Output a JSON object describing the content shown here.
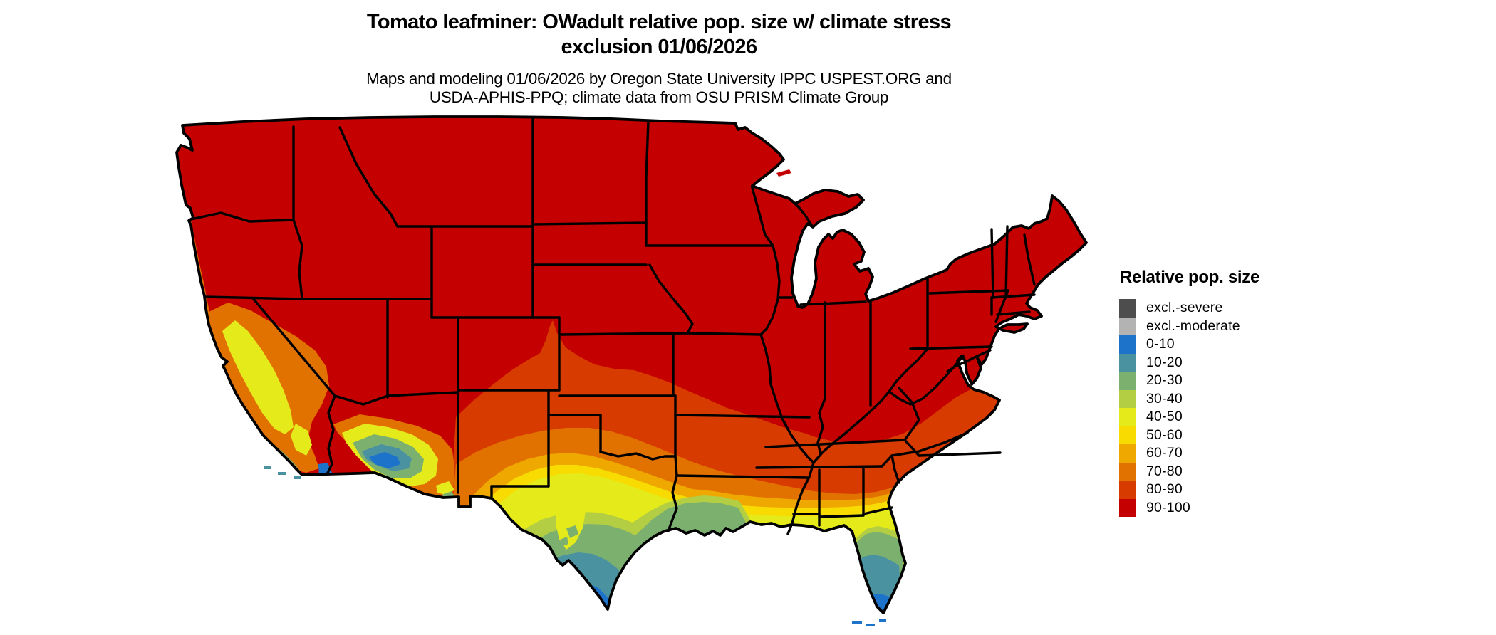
{
  "header": {
    "title_line1": "Tomato leafminer: OWadult relative pop. size w/ climate stress",
    "title_line2": "exclusion 01/06/2026",
    "subtitle_line1": "Maps and modeling 01/06/2026 by Oregon State University IPPC USPEST.ORG and",
    "subtitle_line2": "USDA-APHIS-PPQ; climate data from OSU PRISM Climate Group"
  },
  "legend": {
    "title": "Relative pop. size",
    "items": [
      {
        "label": "excl.-severe",
        "color": "#4D4D4D"
      },
      {
        "label": "excl.-moderate",
        "color": "#B3B3B3"
      },
      {
        "label": "0-10",
        "color": "#1D72C9"
      },
      {
        "label": "10-20",
        "color": "#4B92A1"
      },
      {
        "label": "20-30",
        "color": "#7CB06F"
      },
      {
        "label": "30-40",
        "color": "#B3CE43"
      },
      {
        "label": "40-50",
        "color": "#E5EB1A"
      },
      {
        "label": "50-60",
        "color": "#F8DB00"
      },
      {
        "label": "60-70",
        "color": "#EFA800"
      },
      {
        "label": "70-80",
        "color": "#E27200"
      },
      {
        "label": "80-90",
        "color": "#D83B00"
      },
      {
        "label": "90-100",
        "color": "#C40000"
      }
    ]
  }
}
